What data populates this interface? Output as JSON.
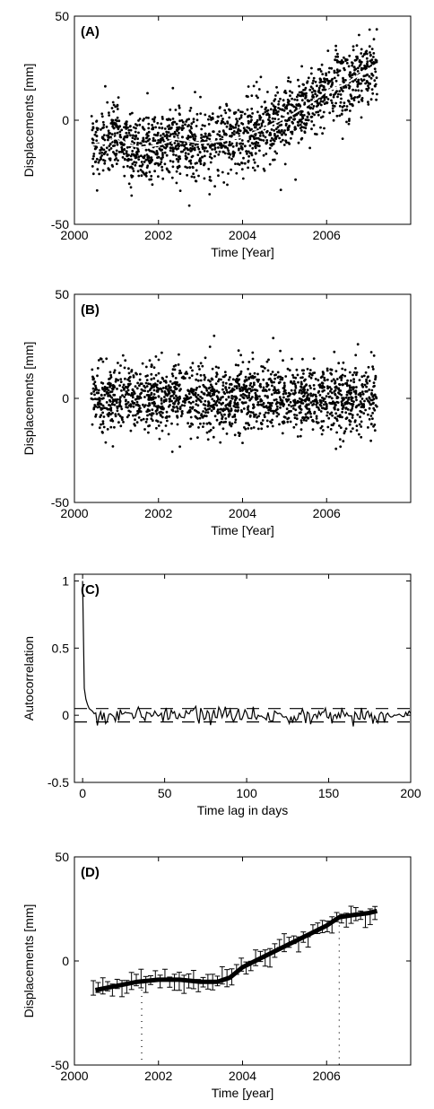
{
  "chart_data": [
    {
      "type": "scatter",
      "panel_label": "(A)",
      "xlabel": "Time [Year]",
      "ylabel": "Displacements [mm]",
      "xlim": [
        2000,
        2008
      ],
      "ylim": [
        -50,
        50
      ],
      "xticks": [
        2000,
        2002,
        2004,
        2006
      ],
      "yticks": [
        -50,
        0,
        50
      ],
      "point_color": "#000000",
      "trend_color": "#ffffff",
      "series": [
        {
          "kind": "points",
          "x_range": [
            2000.4,
            2007.2
          ],
          "count": 1700,
          "noise_sd_mm": 8
        },
        {
          "kind": "trend_line",
          "x": [
            2000.4,
            2000.8,
            2001.0,
            2001.3,
            2001.6,
            2002.0,
            2002.4,
            2002.7,
            2003.0,
            2003.5,
            2004.0,
            2004.4,
            2004.8,
            2005.2,
            2005.6,
            2006.0,
            2006.4,
            2006.8,
            2007.2
          ],
          "y": [
            -12,
            -11,
            -8,
            -12,
            -13,
            -12,
            -9,
            -10,
            -11,
            -10,
            -8,
            -5,
            -1,
            3,
            8,
            14,
            17,
            22,
            27
          ]
        }
      ]
    },
    {
      "type": "scatter",
      "panel_label": "(B)",
      "xlabel": "Time [Year]",
      "ylabel": "Displacements [mm]",
      "xlim": [
        2000,
        2008
      ],
      "ylim": [
        -50,
        50
      ],
      "xticks": [
        2000,
        2002,
        2004,
        2006
      ],
      "yticks": [
        -50,
        0,
        50
      ],
      "point_color": "#000000",
      "series": [
        {
          "kind": "points",
          "x_range": [
            2000.4,
            2007.2
          ],
          "count": 1700,
          "mean_mm": 0,
          "noise_sd_mm": 8
        }
      ]
    },
    {
      "type": "line",
      "panel_label": "(C)",
      "xlabel": "Time lag in days",
      "ylabel": "Autocorrelation",
      "xlim": [
        -5,
        200
      ],
      "ylim": [
        -0.5,
        1.05
      ],
      "xticks": [
        0,
        50,
        100,
        150,
        200
      ],
      "yticks": [
        -0.5,
        0,
        0.5,
        1
      ],
      "line_color": "#000000",
      "series": [
        {
          "kind": "line",
          "x": [
            0,
            1,
            2,
            3,
            4,
            5,
            6
          ],
          "y": [
            1.0,
            0.2,
            0.12,
            0.08,
            0.05,
            0.04,
            0.03
          ],
          "tail_x_range": [
            6,
            200
          ],
          "tail_noise": 0.03
        },
        {
          "kind": "confidence_bound",
          "y": 0.05,
          "style": "dashed"
        },
        {
          "kind": "confidence_bound",
          "y": -0.05,
          "style": "dashed"
        }
      ]
    },
    {
      "type": "line",
      "panel_label": "(D)",
      "xlabel": "Time [year]",
      "ylabel": "Displacements [mm]",
      "xlim": [
        2000,
        2008
      ],
      "ylim": [
        -50,
        50
      ],
      "xticks": [
        2000,
        2002,
        2004,
        2006
      ],
      "yticks": [
        -50,
        0,
        50
      ],
      "line_color": "#000000",
      "series": [
        {
          "kind": "trend_line",
          "x": [
            2000.5,
            2001.0,
            2001.5,
            2002.0,
            2002.5,
            2003.0,
            2003.4,
            2003.7,
            2004.0,
            2004.5,
            2005.0,
            2005.5,
            2006.0,
            2006.3,
            2006.6,
            2007.0,
            2007.2
          ],
          "y": [
            -14,
            -12,
            -10,
            -9,
            -9,
            -10,
            -10,
            -8,
            -3,
            2,
            7,
            12,
            17,
            21,
            22,
            23,
            24
          ]
        },
        {
          "kind": "error_bars",
          "x_range": [
            2000.45,
            2007.15
          ],
          "count": 60,
          "half_width_mm": 3
        },
        {
          "kind": "breakpoint",
          "x": 2001.6,
          "style": "dotted"
        },
        {
          "kind": "breakpoint",
          "x": 2006.3,
          "style": "dotted"
        }
      ]
    }
  ]
}
